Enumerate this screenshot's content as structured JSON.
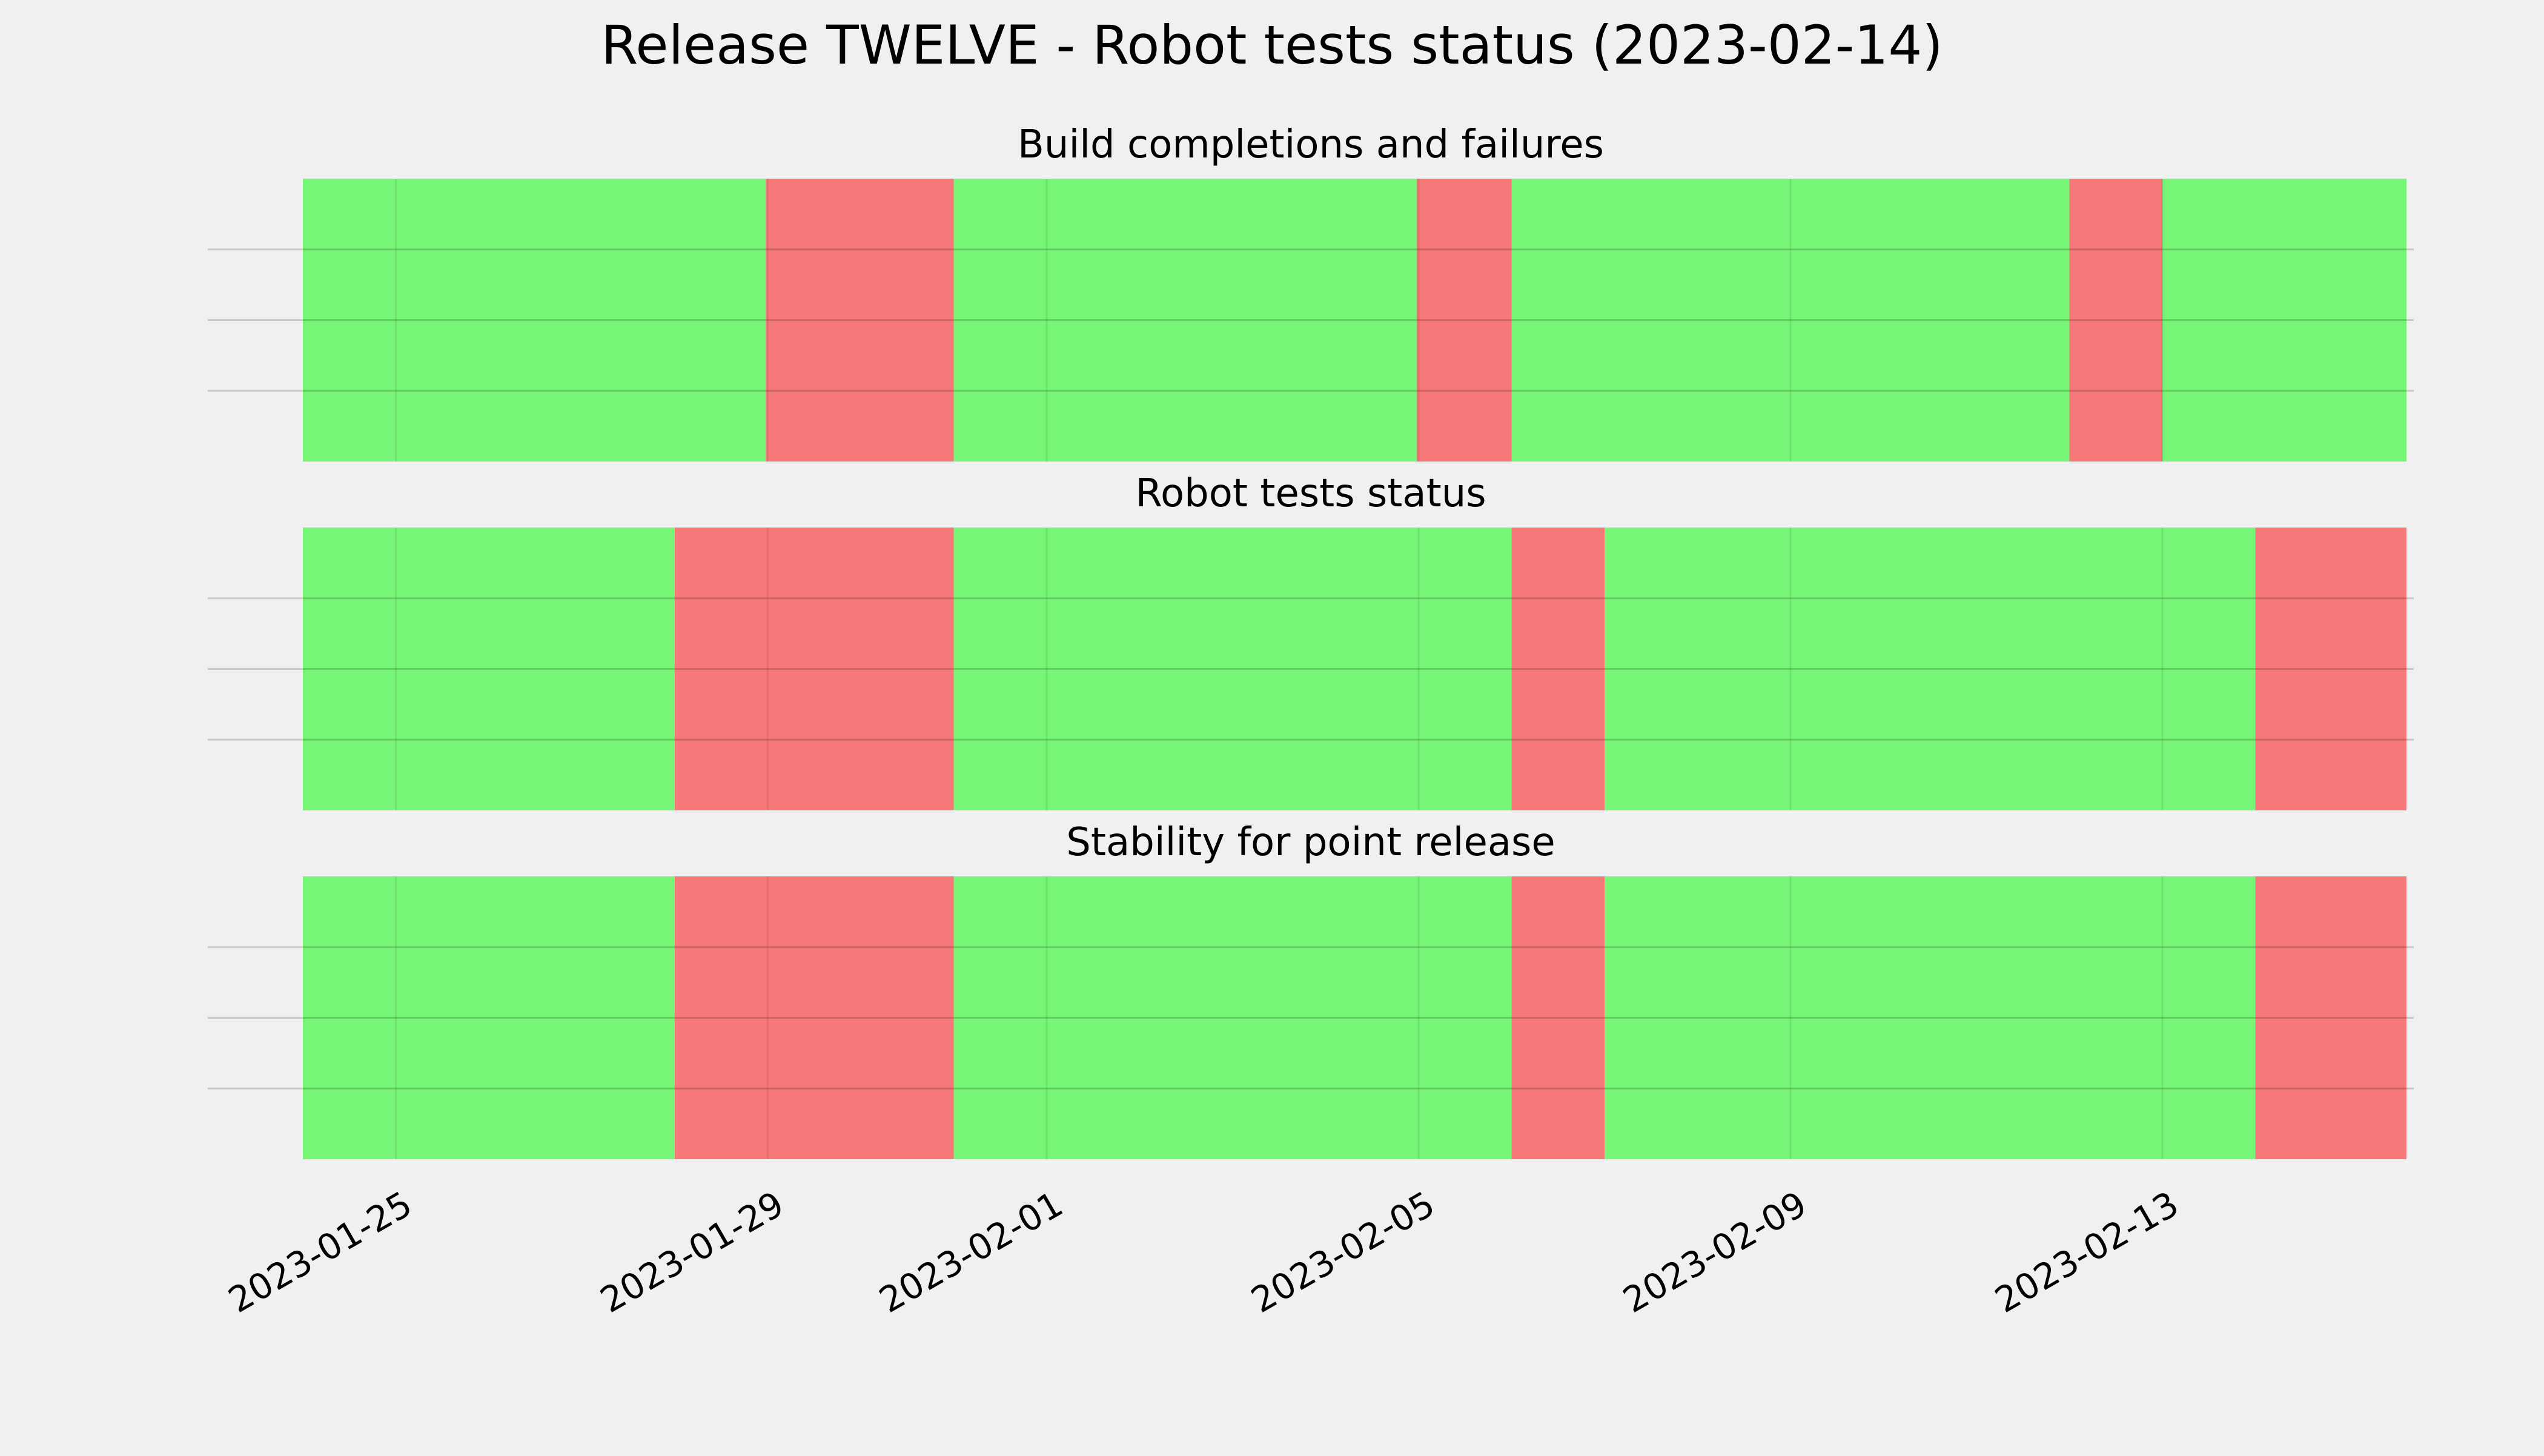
{
  "chart_data": {
    "type": "timeline",
    "title": "Release TWELVE - Robot tests status (2023-02-14)",
    "x_axis": {
      "type": "date",
      "range": [
        "2023-01-24",
        "2023-02-15T15:00"
      ],
      "tick_labels": [
        "2023-01-25",
        "2023-01-29",
        "2023-02-01",
        "2023-02-05",
        "2023-02-09",
        "2023-02-13"
      ],
      "tick_label_rotation": "30deg"
    },
    "grid": true,
    "status_colors": {
      "pass": "#76f576",
      "fail": "#f77878"
    },
    "panels": [
      {
        "title": "Build completions and failures",
        "segments": [
          {
            "start": "2023-01-24T00:00",
            "end": "2023-01-28T23:30",
            "status": "pass"
          },
          {
            "start": "2023-01-28T23:30",
            "end": "2023-01-31T00:00",
            "status": "fail"
          },
          {
            "start": "2023-01-31T00:00",
            "end": "2023-02-04T23:30",
            "status": "pass"
          },
          {
            "start": "2023-02-04T23:30",
            "end": "2023-02-06T00:00",
            "status": "fail"
          },
          {
            "start": "2023-02-06T00:00",
            "end": "2023-02-12T00:00",
            "status": "pass"
          },
          {
            "start": "2023-02-12T00:00",
            "end": "2023-02-13T00:00",
            "status": "fail"
          },
          {
            "start": "2023-02-13T00:00",
            "end": "2023-02-15T15:00",
            "status": "pass"
          }
        ]
      },
      {
        "title": "Robot tests status",
        "segments": [
          {
            "start": "2023-01-24T00:00",
            "end": "2023-01-28T00:00",
            "status": "pass"
          },
          {
            "start": "2023-01-28T00:00",
            "end": "2023-01-31T00:00",
            "status": "fail"
          },
          {
            "start": "2023-01-31T00:00",
            "end": "2023-02-06T00:00",
            "status": "pass"
          },
          {
            "start": "2023-02-06T00:00",
            "end": "2023-02-07T00:00",
            "status": "fail"
          },
          {
            "start": "2023-02-07T00:00",
            "end": "2023-02-14T00:00",
            "status": "pass"
          },
          {
            "start": "2023-02-14T00:00",
            "end": "2023-02-15T15:00",
            "status": "fail"
          }
        ]
      },
      {
        "title": "Stability for point release",
        "segments": [
          {
            "start": "2023-01-24T00:00",
            "end": "2023-01-28T00:00",
            "status": "pass"
          },
          {
            "start": "2023-01-28T00:00",
            "end": "2023-01-31T00:00",
            "status": "fail"
          },
          {
            "start": "2023-01-31T00:00",
            "end": "2023-02-06T00:00",
            "status": "pass"
          },
          {
            "start": "2023-02-06T00:00",
            "end": "2023-02-07T00:00",
            "status": "fail"
          },
          {
            "start": "2023-02-07T00:00",
            "end": "2023-02-14T00:00",
            "status": "pass"
          },
          {
            "start": "2023-02-14T00:00",
            "end": "2023-02-15T15:00",
            "status": "fail"
          }
        ]
      }
    ]
  }
}
